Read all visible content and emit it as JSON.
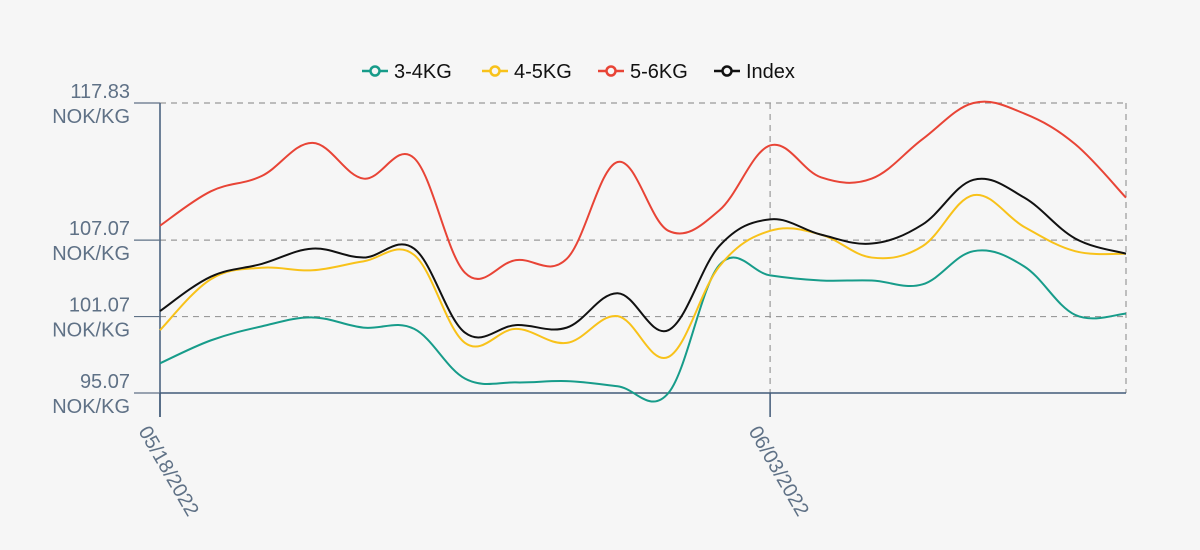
{
  "chart_data": {
    "type": "line",
    "x": [
      "05/18/2022",
      "05/19/2022",
      "05/20/2022",
      "05/23/2022",
      "05/24/2022",
      "05/25/2022",
      "05/26/2022",
      "05/27/2022",
      "05/30/2022",
      "05/31/2022",
      "06/01/2022",
      "06/02/2022",
      "06/03/2022",
      "06/06/2022",
      "06/07/2022",
      "06/08/2022",
      "06/09/2022",
      "06/10/2022",
      "06/13/2022",
      "06/14/2022"
    ],
    "x_tick_labels": [
      "05/18/2022",
      "06/03/2022"
    ],
    "y_ticks": [
      {
        "value": 117.83,
        "label": "117.83",
        "unit": "NOK/KG"
      },
      {
        "value": 107.07,
        "label": "107.07",
        "unit": "NOK/KG"
      },
      {
        "value": 101.07,
        "label": "101.07",
        "unit": "NOK/KG"
      },
      {
        "value": 95.07,
        "label": "95.07",
        "unit": "NOK/KG"
      }
    ],
    "ylim": [
      95.07,
      117.83
    ],
    "grid": true,
    "legend_position": "top-center",
    "series": [
      {
        "name": "3-4KG",
        "color": "#179c8a",
        "values": [
          97.4,
          99.2,
          100.3,
          101.0,
          100.2,
          100.1,
          96.2,
          95.9,
          96.0,
          95.6,
          95.07,
          105.1,
          104.3,
          103.9,
          103.9,
          103.6,
          106.2,
          105.0,
          101.2,
          101.3
        ]
      },
      {
        "name": "4-5KG",
        "color": "#f8c21a",
        "values": [
          100.0,
          104.0,
          104.9,
          104.7,
          105.4,
          105.9,
          99.0,
          100.1,
          99.0,
          101.1,
          97.9,
          105.0,
          107.8,
          107.5,
          105.7,
          106.6,
          110.6,
          108.1,
          106.2,
          106.0
        ]
      },
      {
        "name": "5-6KG",
        "color": "#e84436",
        "values": [
          108.2,
          110.9,
          112.1,
          114.7,
          111.9,
          113.5,
          104.5,
          105.5,
          105.6,
          113.2,
          107.8,
          109.4,
          114.5,
          112.0,
          111.9,
          115.0,
          117.83,
          117.0,
          114.6,
          110.4
        ]
      },
      {
        "name": "Index",
        "color": "#111111",
        "values": [
          101.5,
          104.2,
          105.2,
          106.4,
          105.7,
          106.4,
          99.8,
          100.4,
          100.2,
          102.9,
          100.0,
          106.6,
          108.7,
          107.5,
          106.8,
          108.3,
          111.8,
          110.4,
          107.2,
          106.0
        ]
      }
    ]
  }
}
